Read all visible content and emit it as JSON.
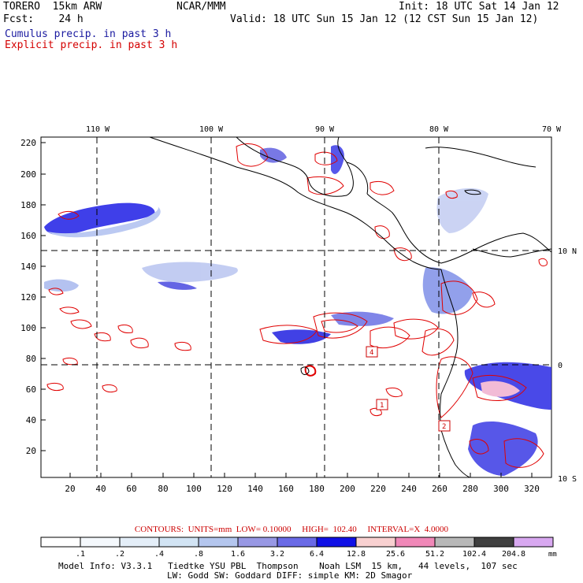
{
  "header": {
    "model": "TORERO  15km ARW",
    "center": "NCAR/MMM",
    "init": "Init: 18 UTC Sat 14 Jan 12",
    "fcst": "Fcst:    24 h",
    "valid": "Valid: 18 UTC Sun 15 Jan 12 (12 CST Sun 15 Jan 12)",
    "field1": "Cumulus precip. in past 3 h",
    "field2": "Explicit precip. in past 3 h"
  },
  "map": {
    "lon_labels": [
      "110 W",
      "100 W",
      "90 W",
      "80 W",
      "70 W"
    ],
    "lat_labels": [
      "10 N",
      "0",
      "10 S"
    ],
    "y_ticks": [
      "220",
      "200",
      "180",
      "160",
      "140",
      "120",
      "100",
      "80",
      "60",
      "40",
      "20"
    ],
    "x_ticks": [
      "20",
      "40",
      "60",
      "80",
      "100",
      "120",
      "140",
      "160",
      "180",
      "200",
      "220",
      "240",
      "260",
      "280",
      "300",
      "320"
    ],
    "box_labels": [
      "4",
      "1",
      "2"
    ],
    "colors": {
      "cumulus": "#1a1ae6",
      "explicit": "#e00000",
      "coast": "#000000"
    }
  },
  "contours_line": "CONTOURS:  UNITS=mm  LOW= 0.10000     HIGH=  102.40     INTERVAL=X  4.0000",
  "colorbar": {
    "labels": [
      ".1",
      ".2",
      ".4",
      ".8",
      "1.6",
      "3.2",
      "6.4",
      "12.8",
      "25.6",
      "51.2",
      "102.4",
      "204.8"
    ],
    "unit": "mm",
    "colors": [
      "#ffffff",
      "#f4f8fc",
      "#e4eef8",
      "#d2e4f4",
      "#b4c6ee",
      "#9898e4",
      "#6a6ae6",
      "#1010e6",
      "#f8d0d0",
      "#f088b8",
      "#b8b8b8",
      "#404040",
      "#d8a8f0"
    ]
  },
  "footer": {
    "line1": "Model Info: V3.3.1   Tiedtke YSU PBL  Thompson    Noah LSM  15 km,   44 levels,  107 sec",
    "line2": "LW: Godd SW: Goddard DIFF: simple KM: 2D Smagor"
  }
}
